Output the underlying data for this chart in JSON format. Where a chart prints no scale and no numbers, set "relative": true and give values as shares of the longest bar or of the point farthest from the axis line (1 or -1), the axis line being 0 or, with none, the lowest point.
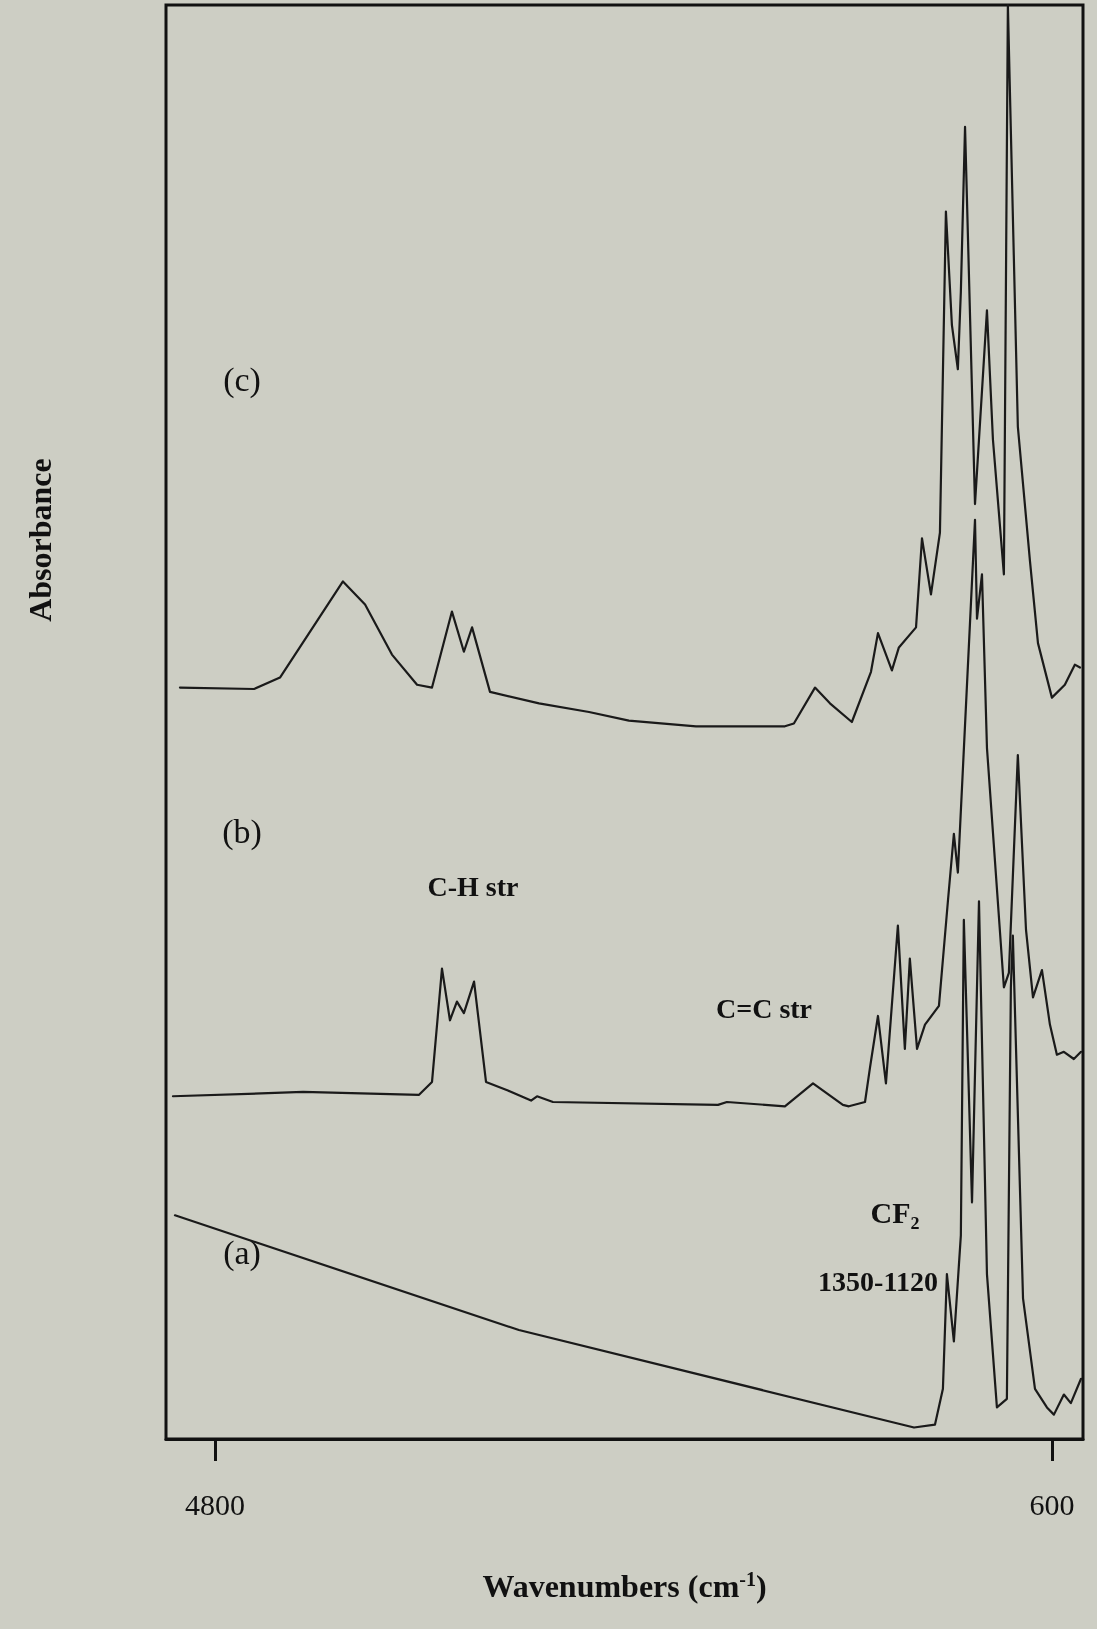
{
  "chart_data": {
    "type": "line",
    "relative": true,
    "xlabel": "Wavenumbers (cm$^{-1}$)",
    "ylabel": "Absorbance",
    "xlim": [
      5046,
      444
    ],
    "xticks": [
      4800,
      600
    ],
    "tick_labels": "x",
    "marker": "none",
    "line_style": "solid",
    "series": [
      {
        "color": "#1a1a1a",
        "x": [
          5001,
          3275,
          1292,
          1187,
          1147,
          1127,
          1092,
          1057,
          1042,
          1001,
          966,
          926,
          876,
          826,
          806,
          796,
          745,
          685,
          625,
          590,
          540,
          505,
          454
        ],
        "values": [
          0.156,
          0.076,
          0.008,
          0.01,
          0.035,
          0.115,
          0.068,
          0.142,
          0.362,
          0.165,
          0.375,
          0.115,
          0.022,
          0.028,
          0.315,
          0.351,
          0.098,
          0.035,
          0.022,
          0.017,
          0.031,
          0.025,
          0.042
        ]
      },
      {
        "color": "#1a1a1a",
        "x": [
          5011,
          4358,
          3776,
          3711,
          3661,
          3621,
          3586,
          3551,
          3500,
          3440,
          3330,
          3214,
          3184,
          3104,
          2276,
          2231,
          1940,
          1799,
          1649,
          1619,
          1538,
          1513,
          1473,
          1433,
          1373,
          1338,
          1313,
          1277,
          1237,
          1167,
          1122,
          1092,
          1072,
          986,
          976,
          951,
          926,
          841,
          816,
          771,
          730,
          695,
          650,
          610,
          575,
          540,
          490,
          454
        ],
        "values": [
          0.239,
          0.242,
          0.24,
          0.249,
          0.328,
          0.292,
          0.305,
          0.297,
          0.319,
          0.249,
          0.243,
          0.236,
          0.239,
          0.235,
          0.233,
          0.235,
          0.232,
          0.248,
          0.233,
          0.232,
          0.235,
          0.259,
          0.295,
          0.248,
          0.358,
          0.272,
          0.335,
          0.272,
          0.289,
          0.302,
          0.375,
          0.422,
          0.395,
          0.641,
          0.572,
          0.603,
          0.482,
          0.315,
          0.325,
          0.477,
          0.355,
          0.308,
          0.327,
          0.289,
          0.268,
          0.27,
          0.265,
          0.27
        ]
      },
      {
        "color": "#1a1a1a",
        "x": [
          4976,
          4604,
          4474,
          4158,
          4047,
          3912,
          3786,
          3711,
          3611,
          3551,
          3510,
          3420,
          3174,
          2923,
          2723,
          2386,
          1940,
          1895,
          1789,
          1714,
          1604,
          1508,
          1473,
          1403,
          1368,
          1282,
          1252,
          1207,
          1162,
          1132,
          1102,
          1072,
          1057,
          1036,
          986,
          926,
          896,
          841,
          821,
          771,
          710,
          670,
          600,
          535,
          485,
          459
        ],
        "values": [
          0.524,
          0.523,
          0.531,
          0.598,
          0.582,
          0.547,
          0.526,
          0.524,
          0.577,
          0.549,
          0.566,
          0.521,
          0.513,
          0.507,
          0.501,
          0.497,
          0.497,
          0.499,
          0.524,
          0.513,
          0.5,
          0.535,
          0.562,
          0.536,
          0.552,
          0.566,
          0.628,
          0.589,
          0.632,
          0.856,
          0.777,
          0.746,
          0.8,
          0.915,
          0.652,
          0.787,
          0.697,
          0.603,
          1,
          0.706,
          0.612,
          0.555,
          0.517,
          0.526,
          0.54,
          0.538
        ]
      }
    ],
    "annotations": [
      "(c)",
      "(b)",
      "(a)",
      "C-H str",
      "C=C str",
      "CF₂",
      "1350-1120"
    ]
  }
}
